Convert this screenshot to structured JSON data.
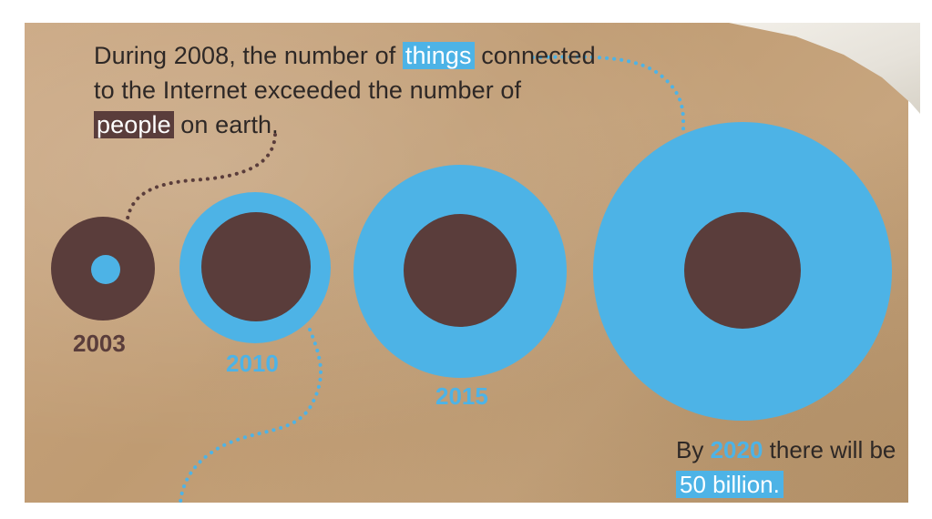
{
  "headline": {
    "part1": "During 2008, the number of ",
    "things": "things",
    "part2": "connected to the Internet exceeded the number of ",
    "people": "people",
    "part3": " on earth."
  },
  "years": {
    "y2003": "2003",
    "y2010": "2010",
    "y2015": "2015"
  },
  "footer": {
    "part1": "By ",
    "year": "2020",
    "part2": " there will be ",
    "amount": "50 billion."
  },
  "colors": {
    "blue": "#4db3e6",
    "brown": "#5a3d3b",
    "paper": "#c4a27a"
  }
}
